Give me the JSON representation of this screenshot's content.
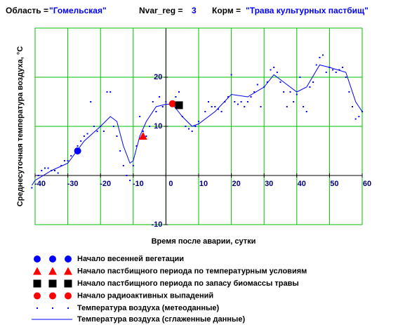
{
  "header": {
    "region_label": "Область =",
    "region": "\"Гомельская\"",
    "nvar_label": "Nvar_reg =",
    "nvar": 3,
    "feed_label": "Корм =",
    "feed": "\"Трава культурных пастбищ\""
  },
  "chart_data": {
    "type": "scatter",
    "x_label": "Время после аварии, сутки",
    "y_label": "Среднесуточная температура воздуха,  °С",
    "xlim": [
      -40,
      60
    ],
    "ylim": [
      -10,
      30
    ],
    "xticks": [
      -40,
      -30,
      -20,
      -10,
      0,
      10,
      20,
      30,
      40,
      50,
      60
    ],
    "yticks": [
      -10,
      10,
      20
    ],
    "grid": true,
    "grid_color": "#00c000",
    "series": [
      {
        "name": "Начало весенней вегетации",
        "marker": "circle",
        "color": "#0000ff",
        "x": [
          -27
        ],
        "values": [
          5
        ]
      },
      {
        "name": "Начало пастбищного периода по температурным условиям",
        "marker": "triangle",
        "color": "#ff0000",
        "x": [
          -7
        ],
        "values": [
          8
        ]
      },
      {
        "name": "Начало пастбищного периода по запасу биомассы травы",
        "marker": "square",
        "color": "#000000",
        "x": [
          4
        ],
        "values": [
          14.3
        ]
      },
      {
        "name": "Начало радиоактивных выпадений",
        "marker": "circle",
        "color": "#ff0000",
        "x": [
          2
        ],
        "values": [
          14.6
        ]
      },
      {
        "name": "Температура воздуха  (метеоданные)",
        "marker": "dot",
        "color": "#0000ff",
        "x": [
          -41,
          -39,
          -38,
          -37,
          -36,
          -35,
          -34,
          -33,
          -32,
          -31,
          -30,
          -29,
          -27,
          -26,
          -25,
          -24,
          -23,
          -22,
          -21,
          -20,
          -19,
          -18,
          -17,
          -16,
          -15,
          -14,
          -13,
          -12,
          -11,
          -10,
          -9,
          -8,
          -7,
          -6,
          -5,
          -4,
          -3,
          -2,
          -1,
          0,
          2,
          3,
          4,
          5,
          6,
          7,
          8,
          9,
          10,
          12,
          13,
          14,
          15,
          16,
          17,
          18,
          19,
          20,
          21,
          22,
          23,
          24,
          25,
          26,
          27,
          28,
          29,
          30,
          31,
          32,
          33,
          34,
          35,
          36,
          37,
          38,
          39,
          40,
          41,
          42,
          43,
          44,
          45,
          46,
          47,
          48,
          49,
          50,
          51,
          52,
          53,
          54,
          55,
          56,
          57,
          58,
          59,
          60
        ],
        "values": [
          -2.5,
          0,
          1,
          1.5,
          1.5,
          1,
          1,
          0.5,
          2,
          3,
          3,
          4,
          6,
          7,
          8,
          8.5,
          15,
          10,
          9,
          10,
          9,
          17,
          17,
          10,
          8,
          5,
          2,
          0,
          -1,
          2,
          6,
          12,
          9,
          8,
          10,
          15,
          13,
          16,
          14,
          15,
          15,
          16,
          17,
          12,
          10,
          9.5,
          9,
          10,
          11,
          13,
          15,
          14,
          14,
          13.5,
          13,
          15,
          16,
          20.5,
          15,
          14.5,
          15,
          14,
          15,
          16,
          17,
          18.5,
          14,
          18,
          19,
          21.5,
          22,
          21,
          19,
          17,
          14,
          17,
          15,
          16.5,
          20,
          14,
          13,
          18,
          19,
          22.5,
          24,
          24.5,
          21,
          22,
          21.5,
          21,
          21.5,
          22,
          20,
          17,
          14,
          11.5,
          12,
          13
        ]
      },
      {
        "name": "Температура воздуха  (сглаженные данные)",
        "marker": "line",
        "color": "#0000ff",
        "x": [
          -41,
          -40,
          -35,
          -30,
          -25,
          -20,
          -17,
          -15,
          -13,
          -11,
          -10,
          -8,
          -6,
          -3,
          0,
          2,
          5,
          8,
          10,
          15,
          20,
          25,
          30,
          33,
          36,
          40,
          43,
          47,
          50,
          55,
          58,
          60
        ],
        "values": [
          -2,
          -1,
          1,
          2.5,
          7,
          10,
          12,
          11,
          6,
          2.5,
          3,
          8,
          11,
          14,
          14.5,
          14.5,
          12,
          10,
          10.5,
          13,
          16.5,
          16,
          18,
          20.5,
          19,
          17,
          18,
          22.5,
          22,
          21,
          15,
          13
        ]
      }
    ]
  }
}
